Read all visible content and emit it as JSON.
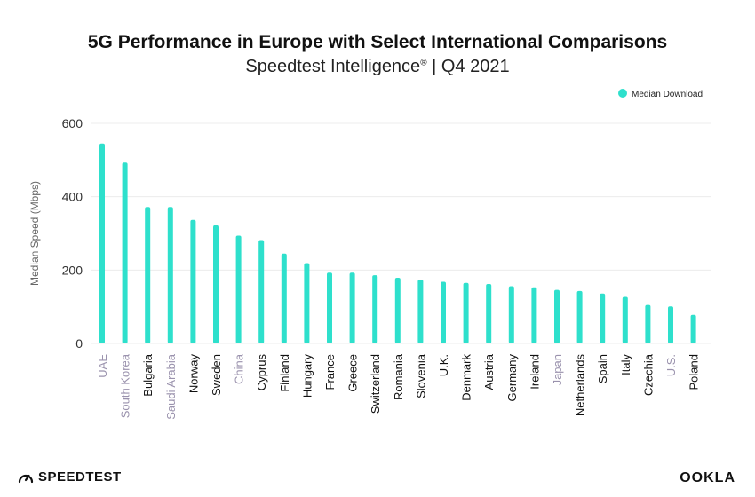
{
  "header": {
    "title": "5G Performance in Europe with Select International Comparisons",
    "subtitle_main": "Speedtest Intelligence",
    "subtitle_mark": "®",
    "subtitle_rest": " | Q4 2021"
  },
  "footer": {
    "left_brand": "SPEEDTEST",
    "left_icon": "speedometer-icon",
    "right_brand": "OOKLA"
  },
  "colors": {
    "bar": "#2ee0cc",
    "label_default": "#111111",
    "label_comparison": "#9a92ad",
    "axis_text": "#333333",
    "grid": "#ececec"
  },
  "chart_data": {
    "type": "bar",
    "title": "5G Performance in Europe with Select International Comparisons",
    "subtitle": "Speedtest Intelligence® | Q4 2021",
    "ylabel": "Median Speed (Mbps)",
    "xlabel": "",
    "ylim": [
      0,
      600
    ],
    "yticks": [
      0,
      200,
      400,
      600
    ],
    "grid": true,
    "legend_position": "top-right",
    "categories": [
      "UAE",
      "South Korea",
      "Bulgaria",
      "Saudi Arabia",
      "Norway",
      "Sweden",
      "China",
      "Cyprus",
      "Finland",
      "Hungary",
      "France",
      "Greece",
      "Switzerland",
      "Romania",
      "Slovenia",
      "U.K.",
      "Denmark",
      "Austria",
      "Germany",
      "Ireland",
      "Japan",
      "Netherlands",
      "Spain",
      "Italy",
      "Czechia",
      "U.S.",
      "Poland"
    ],
    "comparison_countries": [
      "UAE",
      "South Korea",
      "Saudi Arabia",
      "China",
      "Japan",
      "U.S."
    ],
    "series": [
      {
        "name": "Median Download",
        "values": [
          545,
          493,
          372,
          372,
          337,
          322,
          294,
          282,
          245,
          219,
          193,
          193,
          186,
          179,
          174,
          168,
          165,
          162,
          156,
          153,
          146,
          143,
          136,
          127,
          105,
          101,
          78
        ]
      }
    ]
  }
}
